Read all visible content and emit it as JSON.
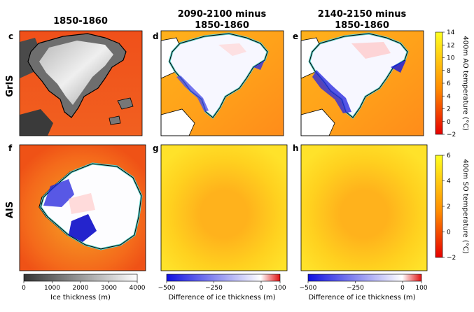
{
  "chart_data": {
    "type": "heatmap",
    "columns": [
      {
        "title": "1850-1860"
      },
      {
        "title": "2090-2100 minus",
        "title2": "1850-1860"
      },
      {
        "title": "2140-2150 minus",
        "title2": "1850-1860"
      }
    ],
    "rows": [
      {
        "label": "GrIS",
        "panels": [
          "c",
          "d",
          "e"
        ]
      },
      {
        "label": "AIS",
        "panels": [
          "f",
          "g",
          "h"
        ]
      }
    ],
    "colorbars": {
      "ice_thickness": {
        "label": "Ice thickness (m)",
        "range": [
          0,
          4000
        ],
        "ticks": [
          "0",
          "1000",
          "2000",
          "3000",
          "4000"
        ],
        "colors": [
          "#333333",
          "#ffffff"
        ]
      },
      "ice_thickness_diff": {
        "label": "Difference of ice thickness (m)",
        "range": [
          -500,
          100
        ],
        "ticks": [
          "−500",
          "−250",
          "0",
          "100"
        ],
        "colors": [
          "#1010e0",
          "#ffffff",
          "#e01010"
        ]
      },
      "ao_temperature": {
        "label": "400m AO temperature (°C)",
        "range": [
          -2,
          14
        ],
        "ticks": [
          "14",
          "12",
          "10",
          "8",
          "6",
          "4",
          "2",
          "0",
          "−2"
        ],
        "colors": [
          "#e60000",
          "#ff8000",
          "#ffff00"
        ]
      },
      "so_temperature": {
        "label": "400m SO temperature (°C)",
        "range": [
          -2,
          6
        ],
        "ticks": [
          "6",
          "4",
          "2",
          "0",
          "−2"
        ],
        "colors": [
          "#e60000",
          "#ff8000",
          "#ffff00"
        ]
      }
    },
    "colors": {
      "ocean_warm": "#f26a1b",
      "ocean_hot": "#ff9a18",
      "ocean_yellow": "#ffd21f",
      "ice_grey": "#8a8a8a",
      "ice_white": "#f4f4f4",
      "ice_dark": "#3a3a3a",
      "diff_blue": "#2222dd",
      "diff_white": "#fbfbff",
      "contour_teal": "#5fd0c8",
      "contour_black": "#000000"
    }
  }
}
